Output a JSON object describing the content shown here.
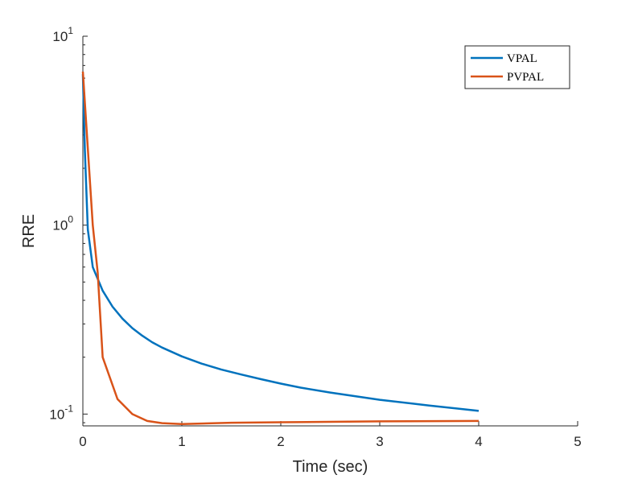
{
  "chart_data": {
    "type": "line",
    "title": "",
    "xlabel": "Time (sec)",
    "ylabel": "RRE",
    "xscale": "linear",
    "yscale": "log",
    "xlim": [
      0,
      5
    ],
    "ylim": [
      0.0866,
      10
    ],
    "x_ticks": [
      0,
      1,
      2,
      3,
      4,
      5
    ],
    "x_tick_labels": [
      "0",
      "1",
      "2",
      "3",
      "4",
      "5"
    ],
    "y_ticks": [
      0.1,
      1,
      10
    ],
    "y_tick_labels": [
      {
        "base": "10",
        "exp": "-1"
      },
      {
        "base": "10",
        "exp": "0"
      },
      {
        "base": "10",
        "exp": "1"
      }
    ],
    "legend_position": "top-right",
    "series": [
      {
        "name": "VPAL",
        "color": "#0072BD",
        "points": [
          [
            0,
            6.3
          ],
          [
            0.02,
            2.5
          ],
          [
            0.05,
            0.95
          ],
          [
            0.1,
            0.6
          ],
          [
            0.2,
            0.45
          ],
          [
            0.3,
            0.37
          ],
          [
            0.4,
            0.32
          ],
          [
            0.5,
            0.285
          ],
          [
            0.6,
            0.26
          ],
          [
            0.7,
            0.24
          ],
          [
            0.8,
            0.225
          ],
          [
            1.0,
            0.202
          ],
          [
            1.2,
            0.185
          ],
          [
            1.4,
            0.172
          ],
          [
            1.6,
            0.162
          ],
          [
            1.8,
            0.153
          ],
          [
            2.0,
            0.145
          ],
          [
            2.2,
            0.138
          ],
          [
            2.5,
            0.13
          ],
          [
            3.0,
            0.119
          ],
          [
            3.5,
            0.111
          ],
          [
            4.0,
            0.104
          ]
        ]
      },
      {
        "name": "PVPAL",
        "color": "#D95319",
        "points": [
          [
            0,
            6.5
          ],
          [
            0.1,
            1.0
          ],
          [
            0.15,
            0.56
          ],
          [
            0.2,
            0.2
          ],
          [
            0.35,
            0.12
          ],
          [
            0.5,
            0.1
          ],
          [
            0.65,
            0.092
          ],
          [
            0.8,
            0.0895
          ],
          [
            1.0,
            0.0885
          ],
          [
            1.5,
            0.09
          ],
          [
            2.0,
            0.0905
          ],
          [
            3.0,
            0.0915
          ],
          [
            4.0,
            0.092
          ]
        ]
      }
    ]
  }
}
